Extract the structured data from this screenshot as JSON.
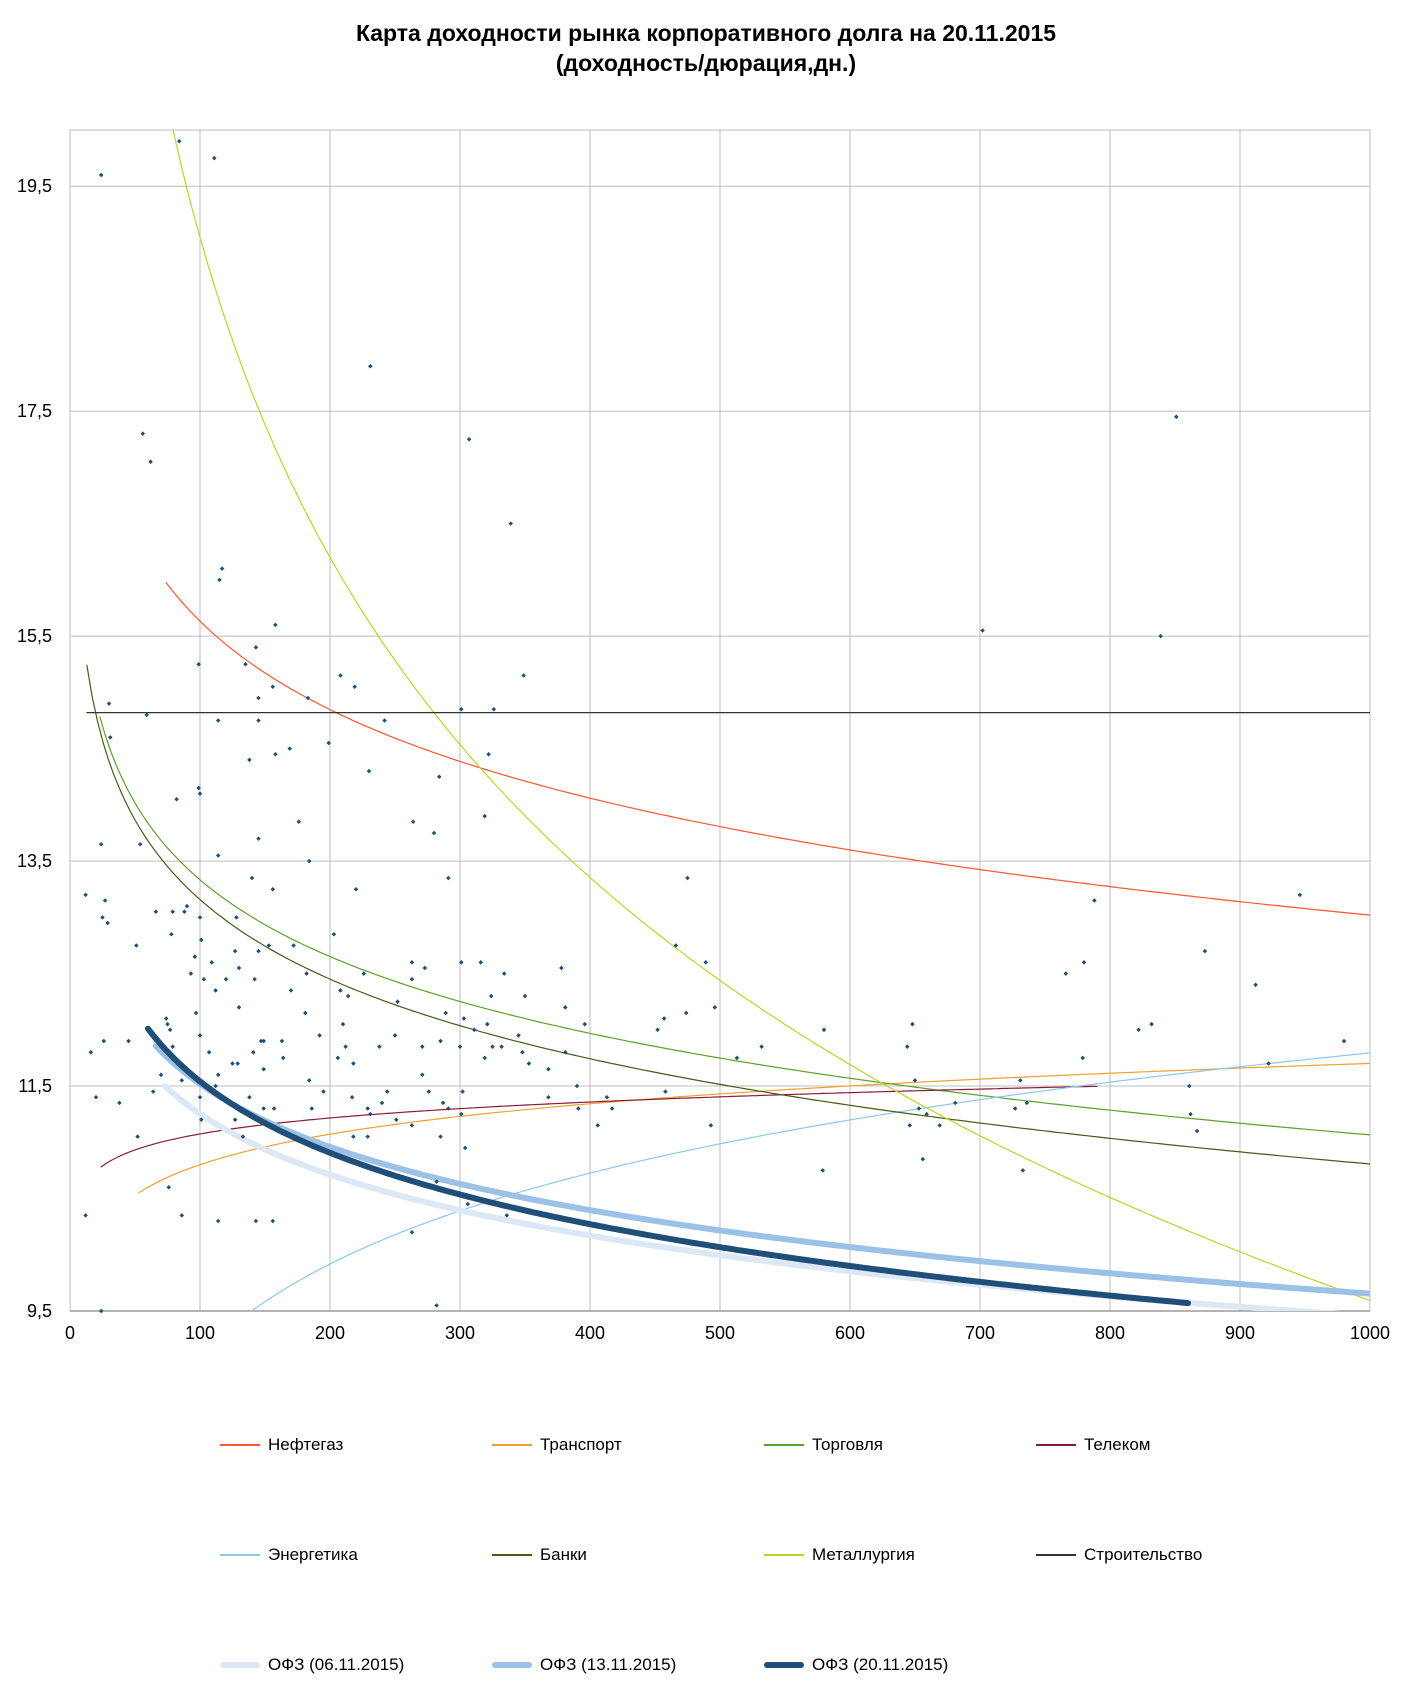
{
  "title": {
    "line1": "Карта доходности рынка корпоративного долга на 20.11.2015",
    "line2": "(доходность/дюрация,дн.)"
  },
  "colors": {
    "background": "#ffffff",
    "grid": "#bfbfbf",
    "axis": "#888888",
    "points": "#1f4e79"
  },
  "chart_data": {
    "type": "scatter",
    "title": "Карта доходности рынка корпоративного долга на 20.11.2015 (доходность/дюрация,дн.)",
    "xlabel": "",
    "ylabel": "",
    "xlim": [
      0,
      1000
    ],
    "ylim": [
      9.5,
      20.0
    ],
    "grid": true,
    "legend_position": "bottom",
    "x_ticks": [
      "0",
      "100",
      "200",
      "300",
      "400",
      "500",
      "600",
      "700",
      "800",
      "900",
      "1000"
    ],
    "y_ticks": [
      "9,5",
      "11,5",
      "13,5",
      "15,5",
      "17,5",
      "19,5"
    ],
    "series": [
      {
        "name": "Нефтегаз",
        "color": "#ff5533",
        "width": 1.2,
        "fn": "log",
        "a": 20.86,
        "b": -1.135,
        "xrange": [
          74,
          1000
        ]
      },
      {
        "name": "Транспорт",
        "color": "#f0a030",
        "width": 1.2,
        "fn": "log",
        "a": 9.0,
        "b": 0.391,
        "xrange": [
          53,
          1000
        ]
      },
      {
        "name": "Торговля",
        "color": "#5ea02c",
        "width": 1.2,
        "fn": "log",
        "a": 17.87,
        "b": -0.985,
        "xrange": [
          23,
          1000
        ]
      },
      {
        "name": "Телеком",
        "color": "#8b1a3a",
        "width": 1.2,
        "fn": "log",
        "a": 10.13,
        "b": 0.205,
        "xrange": [
          24,
          790
        ]
      },
      {
        "name": "Энергетика",
        "color": "#8cc8ea",
        "width": 1.2,
        "fn": "log",
        "a": 3.74,
        "b": 1.166,
        "xrange": [
          64,
          1000
        ]
      },
      {
        "name": "Банки",
        "color": "#4a5a1a",
        "width": 1.2,
        "fn": "log",
        "a": 17.86,
        "b": -1.021,
        "xrange": [
          13,
          1000
        ]
      },
      {
        "name": "Металлургия",
        "color": "#b8d62e",
        "width": 1.2,
        "fn": "log",
        "a": 37.95,
        "b": -4.105,
        "xrange": [
          47,
          1000
        ]
      },
      {
        "name": "Строительство",
        "color": "#333333",
        "width": 1.2,
        "fn": "const",
        "a": 14.82,
        "b": 0,
        "xrange": [
          13,
          1000
        ]
      },
      {
        "name": "ОФЗ (06.11.2015)",
        "color": "#dce8f6",
        "width": 6,
        "fn": "log",
        "a": 14.85,
        "b": -0.781,
        "xrange": [
          73,
          1000
        ]
      },
      {
        "name": "ОФЗ (13.11.2015)",
        "color": "#9cc1e6",
        "width": 6,
        "fn": "log",
        "a": 15.25,
        "b": -0.81,
        "xrange": [
          66,
          1000
        ]
      },
      {
        "name": "ОФЗ (20.11.2015)",
        "color": "#1f4e79",
        "width": 6,
        "fn": "log",
        "a": 15.76,
        "b": -0.916,
        "xrange": [
          60,
          860
        ]
      }
    ],
    "points": [
      [
        84,
        19.9
      ],
      [
        111,
        19.75
      ],
      [
        24,
        19.6
      ],
      [
        231,
        17.9
      ],
      [
        56,
        17.3
      ],
      [
        62,
        17.05
      ],
      [
        307,
        17.25
      ],
      [
        851,
        17.45
      ],
      [
        339,
        16.5
      ],
      [
        117,
        16.1
      ],
      [
        115,
        16.0
      ],
      [
        158,
        15.6
      ],
      [
        702,
        15.55
      ],
      [
        839,
        15.5
      ],
      [
        143,
        15.4
      ],
      [
        99,
        15.25
      ],
      [
        135,
        15.25
      ],
      [
        208,
        15.15
      ],
      [
        349,
        15.15
      ],
      [
        156,
        15.05
      ],
      [
        219,
        15.05
      ],
      [
        145,
        14.95
      ],
      [
        183,
        14.95
      ],
      [
        30,
        14.9
      ],
      [
        301,
        14.85
      ],
      [
        326,
        14.85
      ],
      [
        59,
        14.8
      ],
      [
        114,
        14.75
      ],
      [
        242,
        14.75
      ],
      [
        145,
        14.75
      ],
      [
        158,
        14.45
      ],
      [
        138,
        14.4
      ],
      [
        169,
        14.5
      ],
      [
        31,
        14.6
      ],
      [
        199,
        14.55
      ],
      [
        230,
        14.3
      ],
      [
        284,
        14.25
      ],
      [
        322,
        14.45
      ],
      [
        99,
        14.15
      ],
      [
        82,
        14.05
      ],
      [
        100,
        14.1
      ],
      [
        319,
        13.9
      ],
      [
        264,
        13.85
      ],
      [
        176,
        13.85
      ],
      [
        280,
        13.75
      ],
      [
        145,
        13.7
      ],
      [
        24,
        13.65
      ],
      [
        54,
        13.65
      ],
      [
        114,
        13.55
      ],
      [
        184,
        13.5
      ],
      [
        140,
        13.35
      ],
      [
        156,
        13.25
      ],
      [
        220,
        13.25
      ],
      [
        291,
        13.35
      ],
      [
        475,
        13.35
      ],
      [
        788,
        13.15
      ],
      [
        946,
        13.2
      ],
      [
        12,
        13.2
      ],
      [
        27,
        13.15
      ],
      [
        66,
        13.05
      ],
      [
        79,
        13.05
      ],
      [
        90,
        13.1
      ],
      [
        25,
        13.0
      ],
      [
        29,
        12.95
      ],
      [
        100,
        13.0
      ],
      [
        88,
        13.05
      ],
      [
        128,
        13.0
      ],
      [
        78,
        12.85
      ],
      [
        203,
        12.85
      ],
      [
        101,
        12.8
      ],
      [
        153,
        12.75
      ],
      [
        172,
        12.75
      ],
      [
        51,
        12.75
      ],
      [
        127,
        12.7
      ],
      [
        145,
        12.7
      ],
      [
        96,
        12.65
      ],
      [
        109,
        12.6
      ],
      [
        263,
        12.6
      ],
      [
        301,
        12.6
      ],
      [
        316,
        12.6
      ],
      [
        489,
        12.6
      ],
      [
        873,
        12.7
      ],
      [
        780,
        12.6
      ],
      [
        466,
        12.75
      ],
      [
        130,
        12.55
      ],
      [
        93,
        12.5
      ],
      [
        226,
        12.5
      ],
      [
        273,
        12.55
      ],
      [
        334,
        12.5
      ],
      [
        378,
        12.55
      ],
      [
        103,
        12.45
      ],
      [
        120,
        12.45
      ],
      [
        142,
        12.45
      ],
      [
        182,
        12.5
      ],
      [
        263,
        12.45
      ],
      [
        766,
        12.5
      ],
      [
        912,
        12.4
      ],
      [
        112,
        12.35
      ],
      [
        170,
        12.35
      ],
      [
        208,
        12.35
      ],
      [
        214,
        12.3
      ],
      [
        252,
        12.25
      ],
      [
        324,
        12.3
      ],
      [
        350,
        12.3
      ],
      [
        496,
        12.2
      ],
      [
        130,
        12.2
      ],
      [
        97,
        12.15
      ],
      [
        74,
        12.1
      ],
      [
        181,
        12.15
      ],
      [
        289,
        12.15
      ],
      [
        303,
        12.1
      ],
      [
        381,
        12.2
      ],
      [
        457,
        12.1
      ],
      [
        474,
        12.15
      ],
      [
        580,
        12.0
      ],
      [
        648,
        12.05
      ],
      [
        832,
        12.05
      ],
      [
        822,
        12.0
      ],
      [
        75,
        12.05
      ],
      [
        77,
        12.0
      ],
      [
        210,
        12.05
      ],
      [
        321,
        12.05
      ],
      [
        100,
        11.95
      ],
      [
        149,
        11.9
      ],
      [
        192,
        11.95
      ],
      [
        250,
        11.95
      ],
      [
        311,
        12.0
      ],
      [
        345,
        11.95
      ],
      [
        396,
        12.05
      ],
      [
        452,
        12.0
      ],
      [
        26,
        11.9
      ],
      [
        45,
        11.9
      ],
      [
        147,
        11.9
      ],
      [
        163,
        11.9
      ],
      [
        212,
        11.85
      ],
      [
        285,
        11.9
      ],
      [
        332,
        11.85
      ],
      [
        532,
        11.85
      ],
      [
        644,
        11.85
      ],
      [
        980,
        11.9
      ],
      [
        79,
        11.85
      ],
      [
        141,
        11.8
      ],
      [
        238,
        11.85
      ],
      [
        271,
        11.85
      ],
      [
        300,
        11.85
      ],
      [
        325,
        11.85
      ],
      [
        348,
        11.8
      ],
      [
        381,
        11.8
      ],
      [
        107,
        11.8
      ],
      [
        513,
        11.75
      ],
      [
        16,
        11.8
      ],
      [
        125,
        11.7
      ],
      [
        164,
        11.75
      ],
      [
        206,
        11.75
      ],
      [
        319,
        11.75
      ],
      [
        353,
        11.7
      ],
      [
        779,
        11.75
      ],
      [
        90,
        11.65
      ],
      [
        129,
        11.7
      ],
      [
        149,
        11.65
      ],
      [
        218,
        11.7
      ],
      [
        368,
        11.65
      ],
      [
        922,
        11.7
      ],
      [
        70,
        11.6
      ],
      [
        114,
        11.6
      ],
      [
        86,
        11.55
      ],
      [
        184,
        11.55
      ],
      [
        271,
        11.6
      ],
      [
        731,
        11.55
      ],
      [
        112,
        11.5
      ],
      [
        195,
        11.45
      ],
      [
        244,
        11.45
      ],
      [
        276,
        11.45
      ],
      [
        302,
        11.45
      ],
      [
        390,
        11.5
      ],
      [
        458,
        11.45
      ],
      [
        650,
        11.55
      ],
      [
        861,
        11.5
      ],
      [
        20,
        11.4
      ],
      [
        38,
        11.35
      ],
      [
        64,
        11.45
      ],
      [
        100,
        11.4
      ],
      [
        138,
        11.4
      ],
      [
        217,
        11.4
      ],
      [
        240,
        11.35
      ],
      [
        287,
        11.35
      ],
      [
        368,
        11.4
      ],
      [
        413,
        11.4
      ],
      [
        736,
        11.35
      ],
      [
        149,
        11.3
      ],
      [
        157,
        11.3
      ],
      [
        186,
        11.3
      ],
      [
        229,
        11.3
      ],
      [
        291,
        11.3
      ],
      [
        653,
        11.3
      ],
      [
        681,
        11.35
      ],
      [
        727,
        11.3
      ],
      [
        862,
        11.25
      ],
      [
        101,
        11.2
      ],
      [
        127,
        11.2
      ],
      [
        231,
        11.25
      ],
      [
        251,
        11.2
      ],
      [
        301,
        11.25
      ],
      [
        391,
        11.3
      ],
      [
        417,
        11.3
      ],
      [
        659,
        11.25
      ],
      [
        669,
        11.15
      ],
      [
        646,
        11.15
      ],
      [
        867,
        11.1
      ],
      [
        52,
        11.05
      ],
      [
        133,
        11.05
      ],
      [
        218,
        11.05
      ],
      [
        229,
        11.05
      ],
      [
        263,
        11.15
      ],
      [
        285,
        11.05
      ],
      [
        406,
        11.15
      ],
      [
        493,
        11.15
      ],
      [
        12,
        10.35
      ],
      [
        76,
        10.6
      ],
      [
        86,
        10.35
      ],
      [
        114,
        10.3
      ],
      [
        143,
        10.3
      ],
      [
        156,
        10.3
      ],
      [
        263,
        10.2
      ],
      [
        282,
        10.65
      ],
      [
        306,
        10.45
      ],
      [
        304,
        10.95
      ],
      [
        336,
        10.35
      ],
      [
        579,
        10.75
      ],
      [
        733,
        10.75
      ],
      [
        656,
        10.85
      ],
      [
        24,
        9.5
      ],
      [
        282,
        9.55
      ]
    ]
  },
  "legend": [
    {
      "label": "Нефтегаз",
      "color": "#ff5533",
      "width": 1.2
    },
    {
      "label": "Транспорт",
      "color": "#f0a030",
      "width": 1.2
    },
    {
      "label": "Торговля",
      "color": "#5ea02c",
      "width": 1.2
    },
    {
      "label": "Телеком",
      "color": "#8b1a3a",
      "width": 1.2
    },
    {
      "label": "Энергетика",
      "color": "#8cc8ea",
      "width": 1.2
    },
    {
      "label": "Банки",
      "color": "#4a5a1a",
      "width": 1.2
    },
    {
      "label": "Металлургия",
      "color": "#b8d62e",
      "width": 1.2
    },
    {
      "label": "Строительство",
      "color": "#333333",
      "width": 1.2
    },
    {
      "label": "ОФЗ (06.11.2015)",
      "color": "#dce8f6",
      "width": 6
    },
    {
      "label": "ОФЗ (13.11.2015)",
      "color": "#9cc1e6",
      "width": 6
    },
    {
      "label": "ОФЗ (20.11.2015)",
      "color": "#1f4e79",
      "width": 6
    }
  ]
}
